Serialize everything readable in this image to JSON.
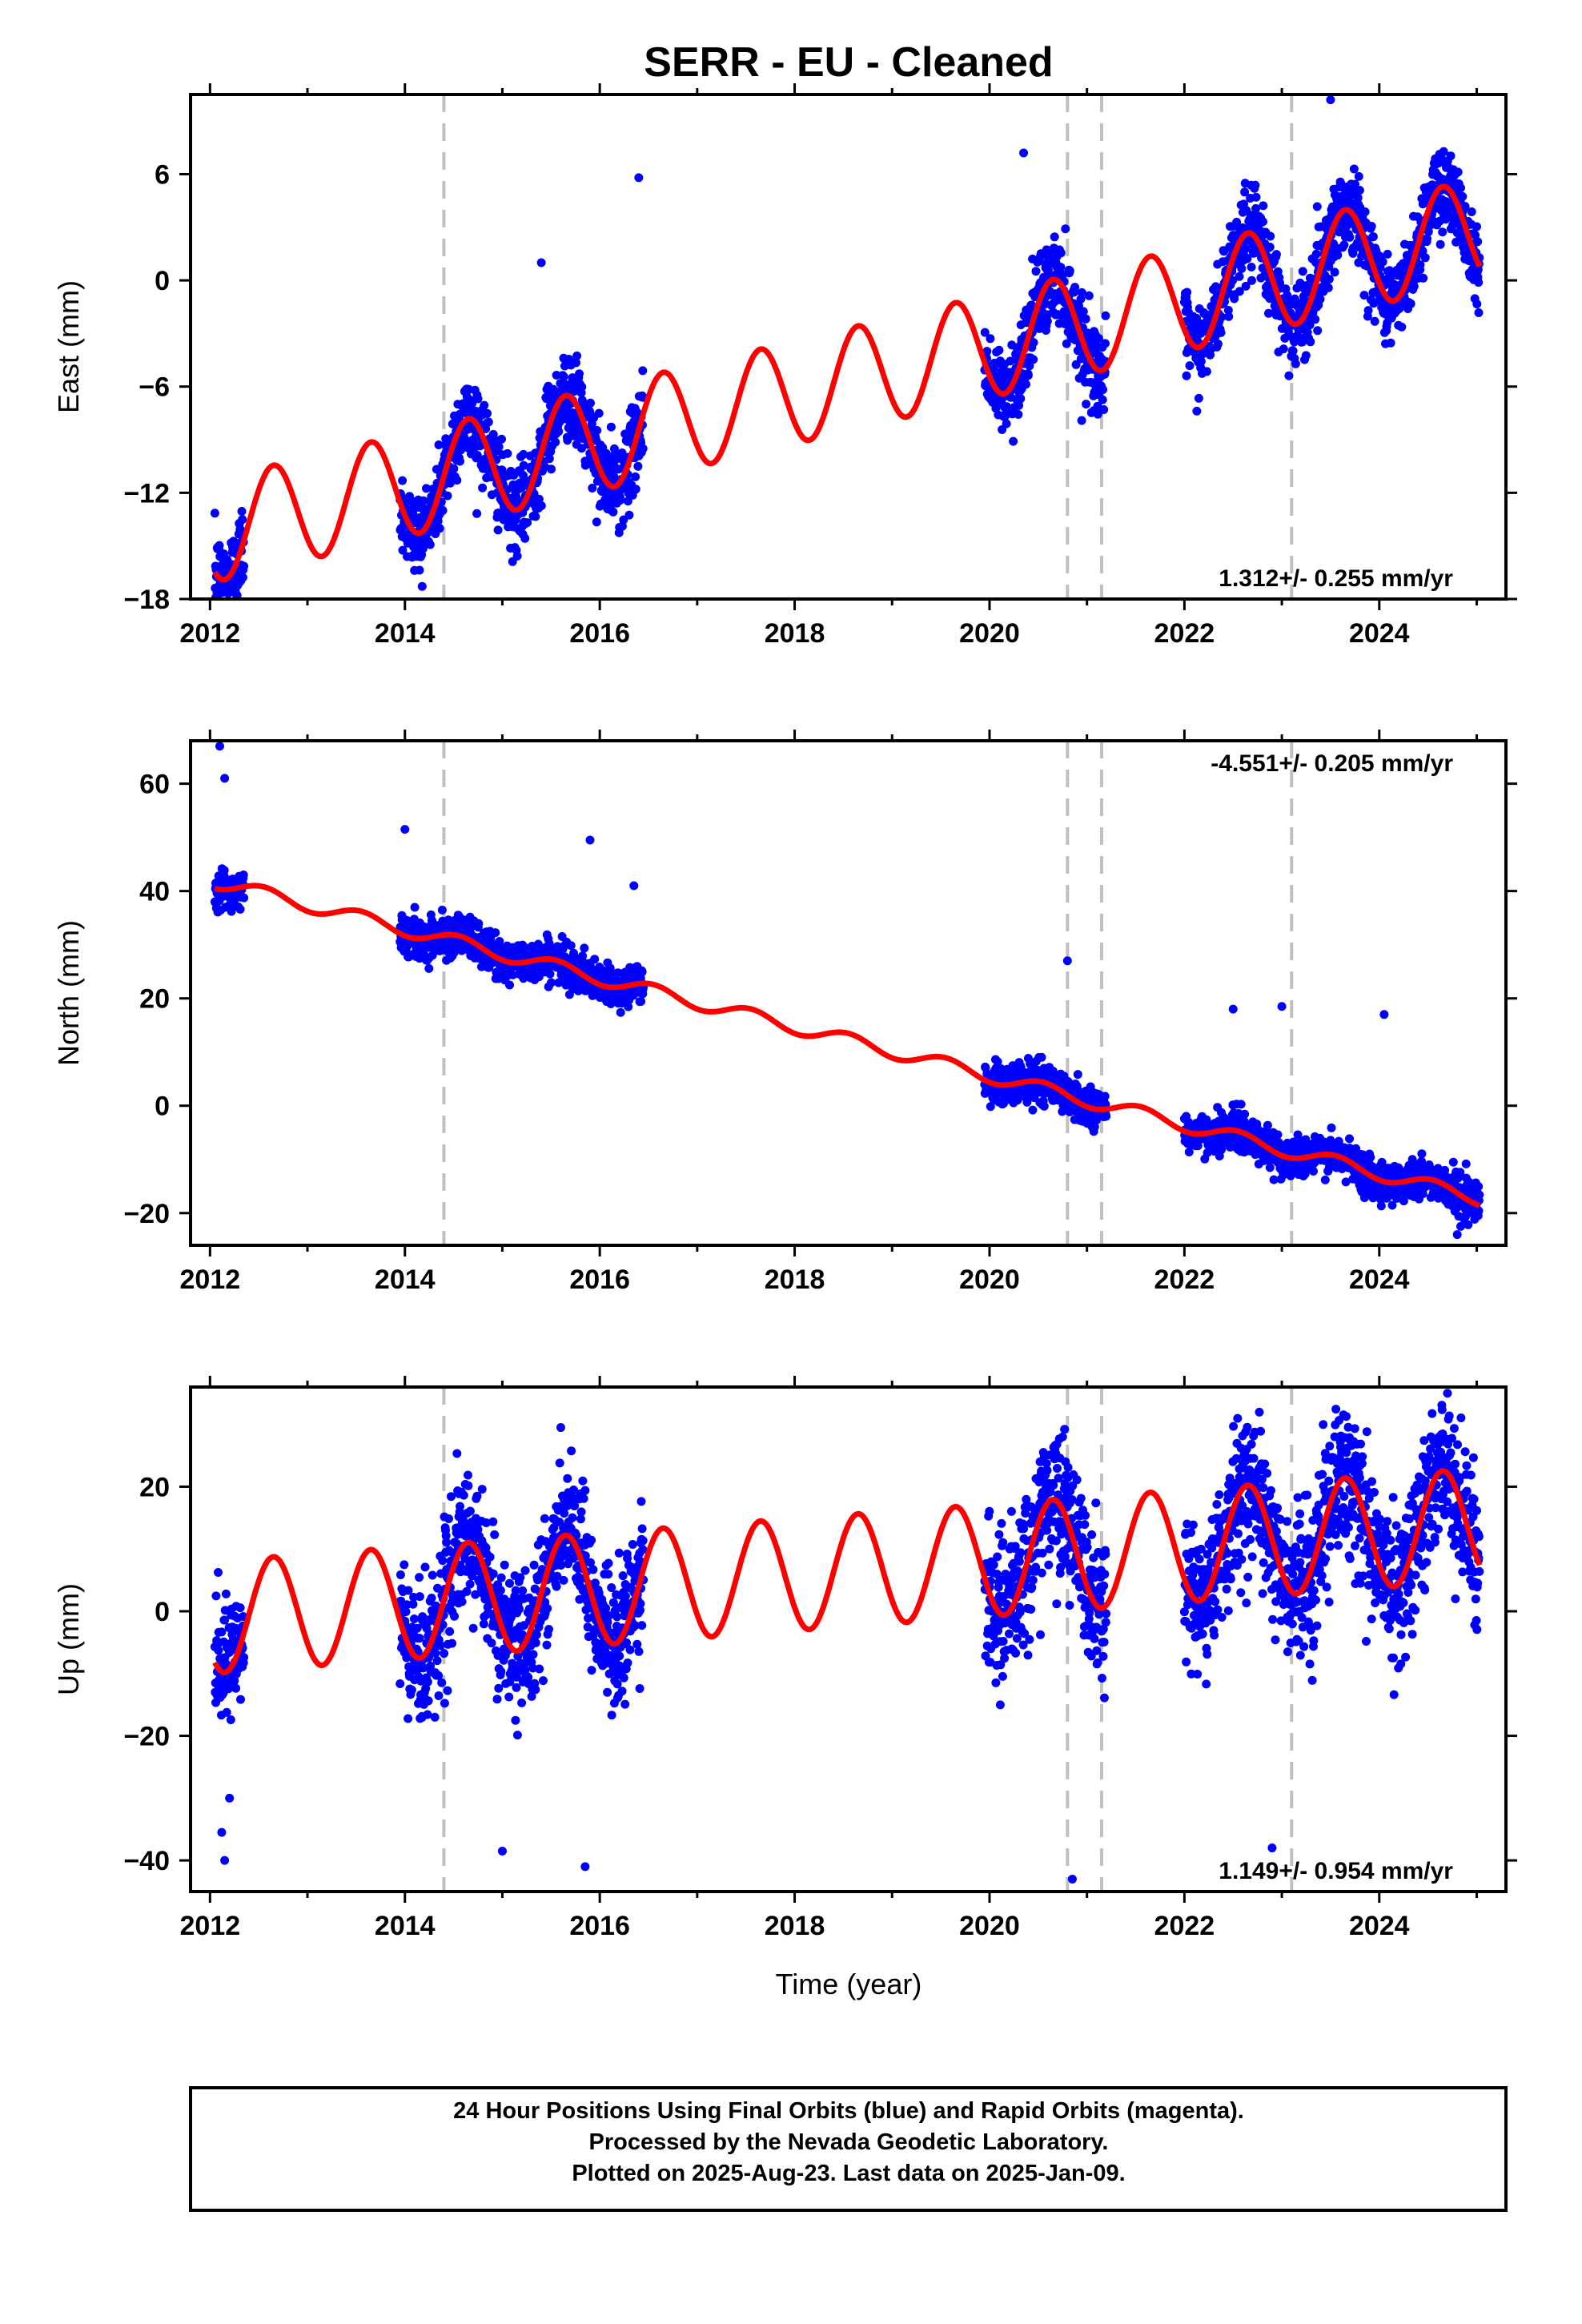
{
  "title": "SERR  - EU - Cleaned",
  "colors": {
    "observations": "#0000ff",
    "model": "#ff0000",
    "events": "#c0c0c0",
    "frame": "#000000"
  },
  "event_years": [
    2014.4,
    2020.8,
    2021.15,
    2023.1
  ],
  "xlabel": "Time (year)",
  "footer": [
    "24 Hour Positions Using Final Orbits (blue) and Rapid Orbits (magenta).",
    "Processed by the Nevada Geodetic Laboratory.",
    "Plotted on 2025-Aug-23. Last data on 2025-Jan-09."
  ],
  "chart_data": [
    {
      "type": "scatter",
      "ylabel": "East (mm)",
      "rate_label": "1.312+/- 0.255 mm/yr",
      "rate_label_position": "bottom-right",
      "xlim": [
        2011.8,
        2025.3
      ],
      "ylim": [
        -18,
        10.5
      ],
      "xticks": [
        2012,
        2014,
        2016,
        2018,
        2020,
        2022,
        2024
      ],
      "yticks": [
        -18,
        -12,
        -6,
        0,
        6
      ],
      "data_segments": [
        [
          2012.05,
          2012.35
        ],
        [
          2013.95,
          2016.45
        ],
        [
          2019.95,
          2021.2
        ],
        [
          2022.0,
          2025.03
        ]
      ],
      "model": {
        "slope": 1.312,
        "intercept_year": 2012.0,
        "intercept": -14.2,
        "amplitude": 2.9,
        "phase": 0.4,
        "offsets": [
          {
            "year": 2014.4,
            "value": 0.0
          },
          {
            "year": 2020.8,
            "value": 0.0
          },
          {
            "year": 2021.15,
            "value": 0.0
          },
          {
            "year": 2023.1,
            "value": 0.0
          }
        ]
      },
      "scatter_sd": 1.2,
      "outliers": [
        [
          2012.1,
          -17.5
        ],
        [
          2016.4,
          5.8
        ],
        [
          2020.35,
          7.2
        ],
        [
          2023.5,
          10.2
        ],
        [
          2015.4,
          1.0
        ]
      ]
    },
    {
      "type": "scatter",
      "ylabel": "North (mm)",
      "rate_label": "-4.551+/- 0.205 mm/yr",
      "rate_label_position": "top-right",
      "xlim": [
        2011.8,
        2025.3
      ],
      "ylim": [
        -26,
        68
      ],
      "xticks": [
        2012,
        2014,
        2016,
        2018,
        2020,
        2022,
        2024
      ],
      "yticks": [
        -20,
        0,
        20,
        40,
        60
      ],
      "data_segments": [
        [
          2012.05,
          2012.35
        ],
        [
          2013.95,
          2016.45
        ],
        [
          2019.95,
          2021.2
        ],
        [
          2022.0,
          2025.03
        ]
      ],
      "model": {
        "slope": -4.551,
        "intercept_year": 2012.0,
        "intercept": 42.0,
        "amplitude": 1.3,
        "phase": 0.3,
        "offsets": [
          {
            "year": 2014.4,
            "value": 0.0
          },
          {
            "year": 2020.8,
            "value": 0.0
          },
          {
            "year": 2021.15,
            "value": 0.0
          },
          {
            "year": 2023.1,
            "value": 0.0
          }
        ]
      },
      "scatter_sd": 1.8,
      "outliers": [
        [
          2012.1,
          67.0
        ],
        [
          2012.15,
          61.0
        ],
        [
          2014.0,
          51.5
        ],
        [
          2015.9,
          49.5
        ],
        [
          2016.35,
          41.0
        ],
        [
          2020.8,
          27.0
        ],
        [
          2022.5,
          18.0
        ],
        [
          2023.0,
          18.5
        ],
        [
          2024.05,
          17.0
        ],
        [
          2024.8,
          -24.0
        ]
      ]
    },
    {
      "type": "scatter",
      "ylabel": "Up (mm)",
      "rate_label": "1.149+/- 0.954 mm/yr",
      "rate_label_position": "bottom-right",
      "xlim": [
        2011.8,
        2025.3
      ],
      "ylim": [
        -45,
        36
      ],
      "xticks": [
        2012,
        2014,
        2016,
        2018,
        2020,
        2022,
        2024
      ],
      "yticks": [
        -40,
        -20,
        0,
        20
      ],
      "data_segments": [
        [
          2012.05,
          2012.35
        ],
        [
          2013.95,
          2016.45
        ],
        [
          2019.95,
          2021.2
        ],
        [
          2022.0,
          2025.03
        ]
      ],
      "model": {
        "slope": 1.149,
        "intercept_year": 2012.0,
        "intercept": -1.0,
        "amplitude": 9.0,
        "phase": 0.4,
        "offsets": [
          {
            "year": 2014.4,
            "value": 0.0
          },
          {
            "year": 2020.8,
            "value": 0.0
          },
          {
            "year": 2021.15,
            "value": 0.0
          },
          {
            "year": 2023.1,
            "value": 0.0
          }
        ]
      },
      "scatter_sd": 5.5,
      "outliers": [
        [
          2012.15,
          -40.0
        ],
        [
          2012.12,
          -35.5
        ],
        [
          2012.2,
          -30.0
        ],
        [
          2015.85,
          -41.0
        ],
        [
          2015.0,
          -38.5
        ],
        [
          2020.85,
          -43.0
        ],
        [
          2022.9,
          -38.0
        ],
        [
          2024.7,
          35.0
        ],
        [
          2015.6,
          29.5
        ],
        [
          2020.75,
          28.0
        ]
      ]
    }
  ]
}
